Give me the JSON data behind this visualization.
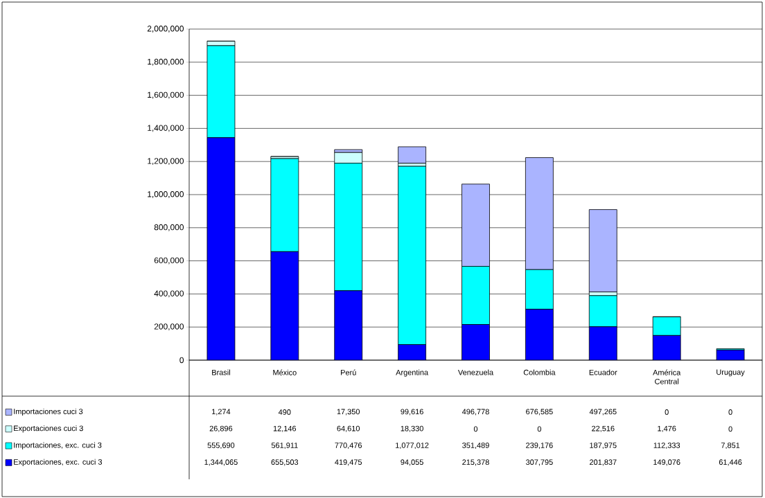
{
  "chart_data": {
    "type": "bar",
    "stacked": true,
    "categories": [
      "Brasil",
      "México",
      "Perú",
      "Argentina",
      "Venezuela",
      "Colombia",
      "Ecuador",
      "América Central",
      "Uruguay"
    ],
    "series": [
      {
        "name": "Exportaciones, exc. cuci 3",
        "color": "#0000ff",
        "values": [
          1344065,
          655503,
          419475,
          94055,
          215378,
          307795,
          201837,
          149076,
          61446
        ],
        "value_labels": [
          "1,344,065",
          "655,503",
          "419,475",
          "94,055",
          "215,378",
          "307,795",
          "201,837",
          "149,076",
          "61,446"
        ]
      },
      {
        "name": "Importaciones, exc. cuci 3",
        "color": "#00ffff",
        "values": [
          555690,
          561911,
          770476,
          1077012,
          351489,
          239176,
          187975,
          112333,
          7851
        ],
        "value_labels": [
          "555,690",
          "561,911",
          "770,476",
          "1,077,012",
          "351,489",
          "239,176",
          "187,975",
          "112,333",
          "7,851"
        ]
      },
      {
        "name": "Exportaciones cuci 3",
        "color": "#ccffff",
        "values": [
          26896,
          12146,
          64610,
          18330,
          0,
          0,
          22516,
          1476,
          0
        ],
        "value_labels": [
          "26,896",
          "12,146",
          "64,610",
          "18,330",
          "0",
          "0",
          "22,516",
          "1,476",
          "0"
        ]
      },
      {
        "name": "Importaciones cuci 3",
        "color": "#aab4ff",
        "values": [
          1274,
          490,
          17350,
          99616,
          496778,
          676585,
          497265,
          0,
          0
        ],
        "value_labels": [
          "1,274",
          "490",
          "17,350",
          "99,616",
          "496,778",
          "676,585",
          "497,265",
          "0",
          "0"
        ]
      }
    ],
    "ylim": [
      0,
      2000000
    ],
    "yticks": [
      {
        "value": 0,
        "label": "0"
      },
      {
        "value": 200000,
        "label": "200,000"
      },
      {
        "value": 400000,
        "label": "400,000"
      },
      {
        "value": 600000,
        "label": "600,000"
      },
      {
        "value": 800000,
        "label": "800,000"
      },
      {
        "value": 1000000,
        "label": "1,000,000"
      },
      {
        "value": 1200000,
        "label": "1,200,000"
      },
      {
        "value": 1400000,
        "label": "1,400,000"
      },
      {
        "value": 1600000,
        "label": "1,600,000"
      },
      {
        "value": 1800000,
        "label": "1,800,000"
      },
      {
        "value": 2000000,
        "label": "2,000,000"
      }
    ],
    "grid": "y",
    "legend": "bottom"
  }
}
